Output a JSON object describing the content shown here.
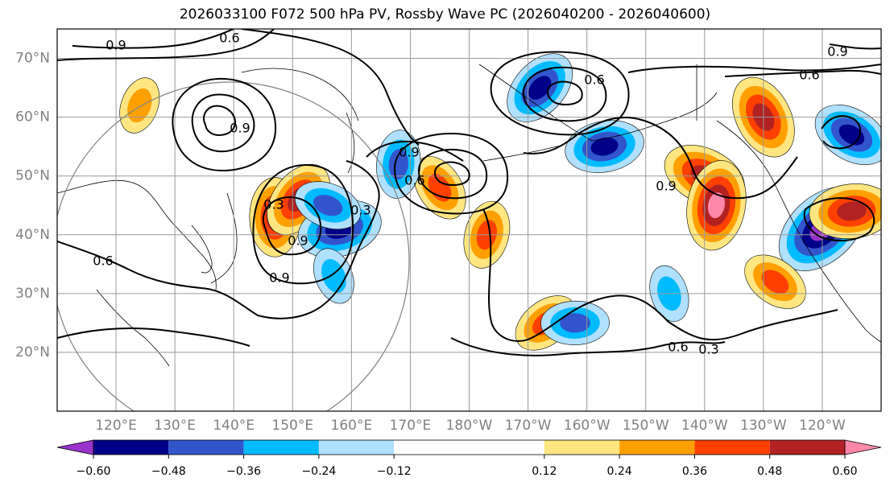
{
  "chart_data": {
    "type": "heatmap",
    "title": "2026033100 F072 500 hPa PV, Rossby Wave PC (2026040200 - 2026040600)",
    "projection": "cylindrical",
    "lon_range": [
      110,
      250
    ],
    "lat_range": [
      10,
      75
    ],
    "lat_ticks": [
      {
        "value": 20,
        "label": "20°N"
      },
      {
        "value": 30,
        "label": "30°N"
      },
      {
        "value": 40,
        "label": "40°N"
      },
      {
        "value": 50,
        "label": "50°N"
      },
      {
        "value": 60,
        "label": "60°N"
      },
      {
        "value": 70,
        "label": "70°N"
      }
    ],
    "lon_ticks": [
      {
        "value": 120,
        "label": "120°E"
      },
      {
        "value": 130,
        "label": "130°E"
      },
      {
        "value": 140,
        "label": "140°E"
      },
      {
        "value": 150,
        "label": "150°E"
      },
      {
        "value": 160,
        "label": "160°E"
      },
      {
        "value": 170,
        "label": "170°E"
      },
      {
        "value": 180,
        "label": "180°W"
      },
      {
        "value": 190,
        "label": "170°W"
      },
      {
        "value": 200,
        "label": "160°W"
      },
      {
        "value": 210,
        "label": "150°W"
      },
      {
        "value": 220,
        "label": "140°W"
      },
      {
        "value": 230,
        "label": "130°W"
      },
      {
        "value": 240,
        "label": "120°W"
      }
    ],
    "grid": true,
    "colorbar": {
      "orientation": "horizontal",
      "extend": "both",
      "levels": [
        -0.72,
        -0.6,
        -0.48,
        -0.36,
        -0.24,
        -0.12,
        0.12,
        0.24,
        0.36,
        0.48,
        0.6,
        0.72
      ],
      "colors": [
        "#9933cc",
        "#000088",
        "#3355cc",
        "#00bbff",
        "#b0e0ff",
        "#ffffff",
        "#ffe680",
        "#ffa000",
        "#ff4000",
        "#b22222",
        "#ff88aa"
      ],
      "tick_values": [
        -0.6,
        -0.48,
        -0.36,
        -0.24,
        -0.12,
        0.12,
        0.24,
        0.36,
        0.48,
        0.6
      ],
      "tick_labels": [
        "−0.60",
        "−0.48",
        "−0.36",
        "−0.24",
        "−0.12",
        "0.12",
        "0.24",
        "0.36",
        "0.48",
        "0.60"
      ]
    },
    "shaded_anomalies": [
      {
        "lon": 147,
        "lat": 43,
        "value": 0.5
      },
      {
        "lon": 151,
        "lat": 46,
        "value": 0.5
      },
      {
        "lon": 158,
        "lat": 41,
        "value": -0.55
      },
      {
        "lon": 156,
        "lat": 45,
        "value": -0.4
      },
      {
        "lon": 175,
        "lat": 48,
        "value": 0.4
      },
      {
        "lon": 168,
        "lat": 52,
        "value": -0.4
      },
      {
        "lon": 192,
        "lat": 65,
        "value": -0.5
      },
      {
        "lon": 203,
        "lat": 55,
        "value": -0.5
      },
      {
        "lon": 220,
        "lat": 50,
        "value": 0.55
      },
      {
        "lon": 230,
        "lat": 60,
        "value": 0.55
      },
      {
        "lon": 222,
        "lat": 45,
        "value": 0.6
      },
      {
        "lon": 240,
        "lat": 41,
        "value": -0.7
      },
      {
        "lon": 245,
        "lat": 44,
        "value": 0.55
      },
      {
        "lon": 245,
        "lat": 57,
        "value": -0.5
      },
      {
        "lon": 157,
        "lat": 33,
        "value": -0.3
      },
      {
        "lon": 183,
        "lat": 40,
        "value": 0.4
      },
      {
        "lon": 193,
        "lat": 25,
        "value": 0.4
      },
      {
        "lon": 198,
        "lat": 25,
        "value": -0.4
      },
      {
        "lon": 232,
        "lat": 32,
        "value": 0.4
      },
      {
        "lon": 214,
        "lat": 30,
        "value": -0.3
      },
      {
        "lon": 124,
        "lat": 62,
        "value": 0.3
      }
    ],
    "pv_contours": [
      {
        "label": "0.9"
      },
      {
        "label": "0.6"
      },
      {
        "label": "0.3"
      }
    ]
  }
}
